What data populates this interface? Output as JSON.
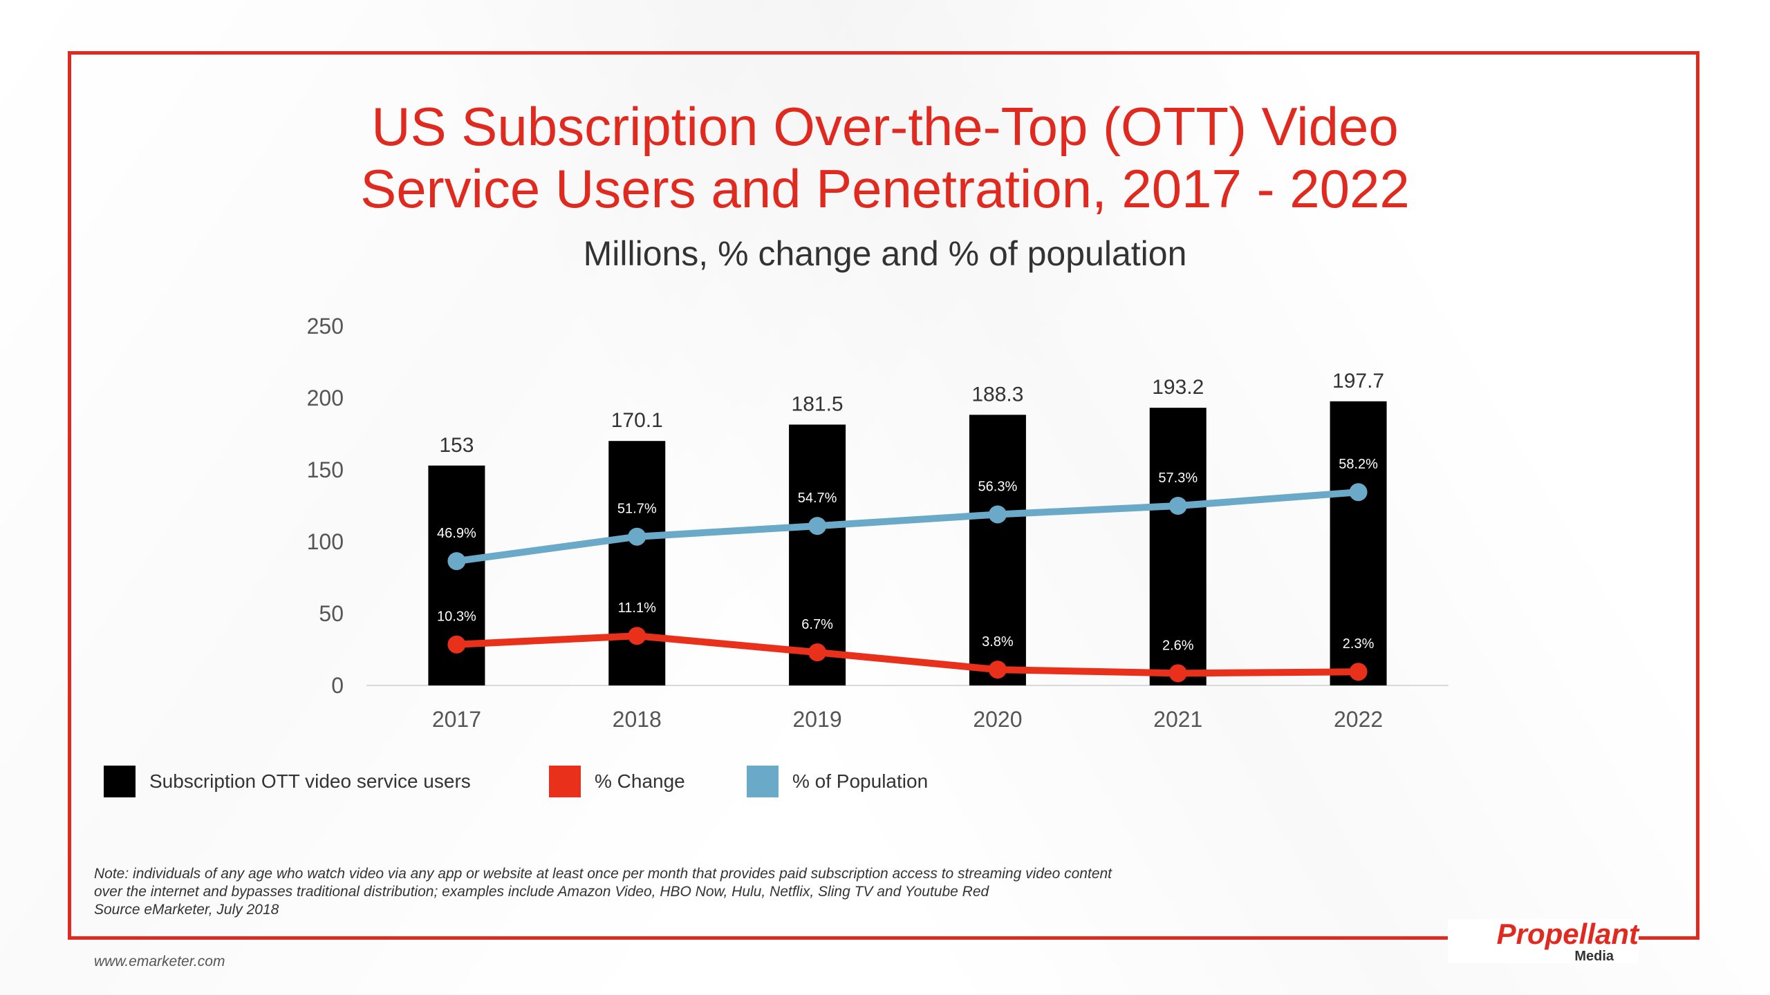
{
  "title": {
    "line1": "US Subscription Over-the-Top (OTT) Video",
    "line2": "Service Users and Penetration, 2017 - 2022"
  },
  "subtitle": "Millions, % change and % of population",
  "colors": {
    "accent": "#e02a1f",
    "bars": "#000000",
    "change_line": "#e8301a",
    "population_line": "#6aa9c8"
  },
  "chart_data": {
    "type": "bar",
    "categories": [
      "2017",
      "2018",
      "2019",
      "2020",
      "2021",
      "2022"
    ],
    "ylim": [
      0,
      250
    ],
    "yticks": [
      0,
      50,
      100,
      150,
      200,
      250
    ],
    "series": [
      {
        "name": "Subscription OTT video service users",
        "type": "bar",
        "values": [
          153,
          170.1,
          181.5,
          188.3,
          193.2,
          197.7
        ],
        "labels": [
          "153",
          "170.1",
          "181.5",
          "188.3",
          "193.2",
          "197.7"
        ]
      },
      {
        "name": "% Change",
        "type": "line",
        "values": [
          10.3,
          11.1,
          6.7,
          3.8,
          2.6,
          2.3
        ],
        "plotted_y": [
          28.5,
          34.5,
          23,
          11,
          8.5,
          9.5
        ],
        "labels": [
          "10.3%",
          "11.1%",
          "6.7%",
          "3.8%",
          "2.6%",
          "2.3%"
        ]
      },
      {
        "name": "% of Population",
        "type": "line",
        "values": [
          46.9,
          51.7,
          54.7,
          56.3,
          57.3,
          58.2
        ],
        "plotted_y": [
          86.5,
          103.5,
          111,
          119,
          125,
          134.5
        ],
        "labels": [
          "46.9%",
          "51.7%",
          "54.7%",
          "56.3%",
          "57.3%",
          "58.2%"
        ]
      }
    ],
    "legend_position": "bottom-left",
    "grid": false
  },
  "note": {
    "line1": "Note: individuals of any age who watch video via any app or website at least once per month that provides paid subscription access to streaming video content",
    "line2": "over the internet and bypasses traditional distribution; examples include Amazon Video, HBO Now, Hulu, Netflix, Sling TV and Youtube Red",
    "line3": "Source eMarketer, July 2018"
  },
  "source_url": "www.emarketer.com",
  "logo": {
    "name": "Propellant",
    "sub": "Media"
  }
}
